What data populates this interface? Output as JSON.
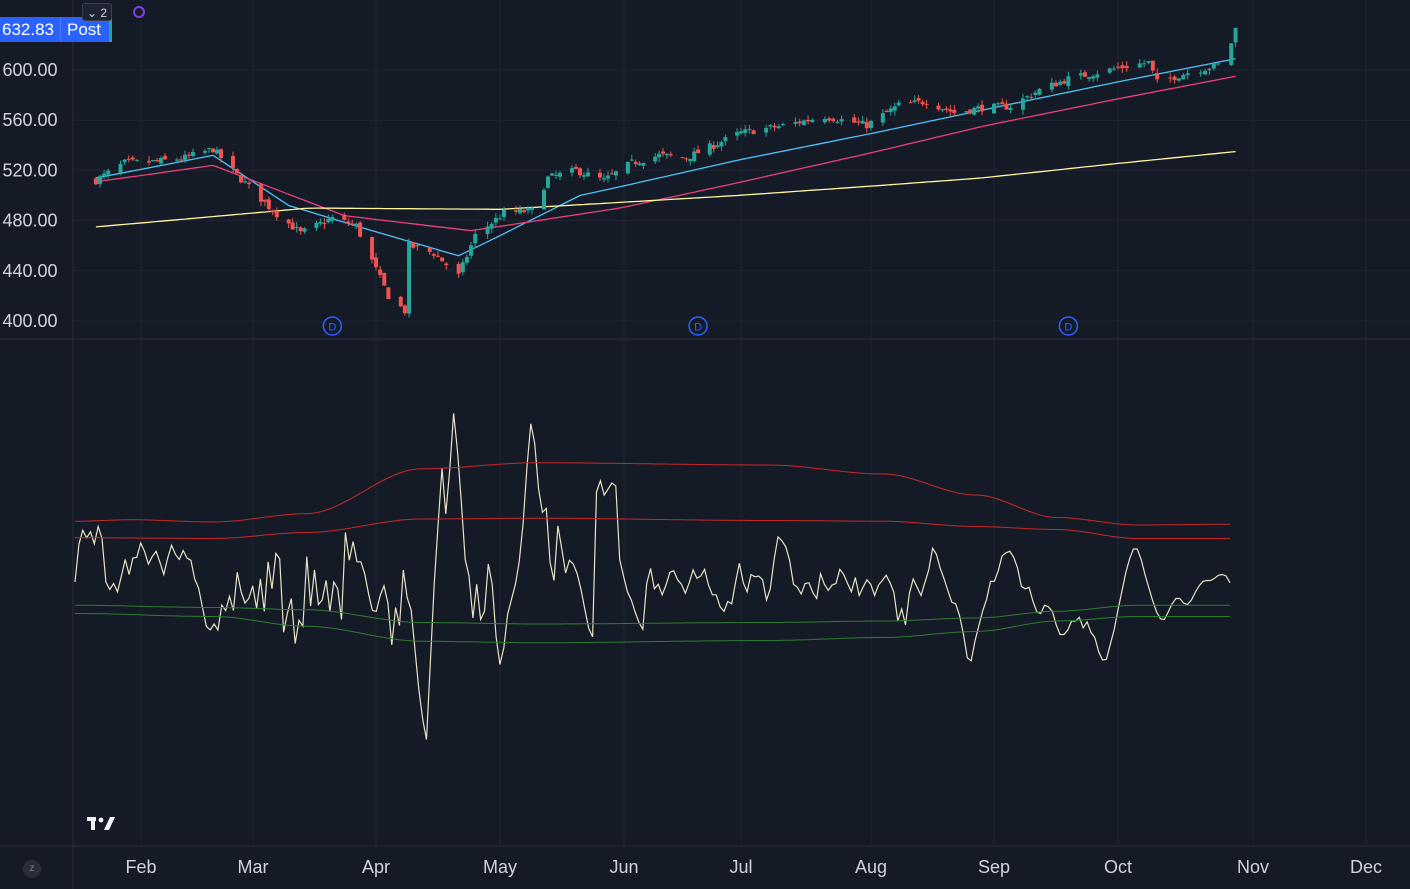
{
  "ticker_bar": {
    "last_price": "632.83",
    "session_label": "Post",
    "collapse_count": "2"
  },
  "theme": {
    "background": "#151a27",
    "grid": "#1f2433",
    "axis_text": "#d1d4dc",
    "up": "#26a69a",
    "down": "#ef5350",
    "ma_fast": "#4fc3f7",
    "ma_mid": "#ec407a",
    "ma_slow": "#fff59d",
    "osc_line": "#e8e3c4",
    "upper_band": "#c62828",
    "lower_band": "#2e7d32",
    "dividend_marker": "#2962ff"
  },
  "chart_data": [
    {
      "type": "candlestick",
      "y_ticks": [
        "600.00",
        "560.00",
        "520.00",
        "480.00",
        "440.00",
        "400.00"
      ],
      "ylim": [
        396,
        640
      ],
      "x_ticks": [
        "Feb",
        "Mar",
        "Apr",
        "May",
        "Jun",
        "Jul",
        "Aug",
        "Sep",
        "Oct",
        "Nov",
        "Dec"
      ],
      "dividend_marker_label": "D",
      "dividend_dates": [
        "2025-03-21",
        "2025-06-20",
        "2025-09-19"
      ],
      "close_anchors": [
        [
          "2025-01-21",
          512
        ],
        [
          "2025-01-28",
          526
        ],
        [
          "2025-02-05",
          527
        ],
        [
          "2025-02-12",
          530
        ],
        [
          "2025-02-19",
          537
        ],
        [
          "2025-02-26",
          513
        ],
        [
          "2025-03-06",
          488
        ],
        [
          "2025-03-13",
          470
        ],
        [
          "2025-03-21",
          482
        ],
        [
          "2025-03-27",
          476
        ],
        [
          "2025-04-04",
          420
        ],
        [
          "2025-04-08",
          408
        ],
        [
          "2025-04-09",
          460
        ],
        [
          "2025-04-15",
          454
        ],
        [
          "2025-04-21",
          436
        ],
        [
          "2025-04-25",
          468
        ],
        [
          "2025-05-02",
          486
        ],
        [
          "2025-05-09",
          488
        ],
        [
          "2025-05-13",
          514
        ],
        [
          "2025-05-20",
          520
        ],
        [
          "2025-05-27",
          512
        ],
        [
          "2025-06-03",
          526
        ],
        [
          "2025-06-10",
          532
        ],
        [
          "2025-06-17",
          530
        ],
        [
          "2025-06-24",
          540
        ],
        [
          "2025-07-01",
          550
        ],
        [
          "2025-07-10",
          555
        ],
        [
          "2025-07-21",
          563
        ],
        [
          "2025-07-31",
          556
        ],
        [
          "2025-08-08",
          572
        ],
        [
          "2025-08-15",
          575
        ],
        [
          "2025-08-22",
          566
        ],
        [
          "2025-08-29",
          570
        ],
        [
          "2025-09-05",
          571
        ],
        [
          "2025-09-12",
          584
        ],
        [
          "2025-09-19",
          593
        ],
        [
          "2025-09-26",
          598
        ],
        [
          "2025-10-03",
          603
        ],
        [
          "2025-10-08",
          606
        ],
        [
          "2025-10-10",
          590
        ],
        [
          "2025-10-17",
          598
        ],
        [
          "2025-10-24",
          604
        ],
        [
          "2025-10-27",
          622
        ],
        [
          "2025-10-28",
          632.83
        ]
      ],
      "moving_averages": [
        {
          "id": "fast",
          "anchors": [
            [
              "2025-01-21",
              514
            ],
            [
              "2025-02-19",
              532
            ],
            [
              "2025-03-10",
              492
            ],
            [
              "2025-04-21",
              452
            ],
            [
              "2025-05-21",
              500
            ],
            [
              "2025-06-30",
              528
            ],
            [
              "2025-08-29",
              568
            ],
            [
              "2025-10-28",
              609
            ]
          ]
        },
        {
          "id": "mid",
          "anchors": [
            [
              "2025-01-21",
              511
            ],
            [
              "2025-02-19",
              524
            ],
            [
              "2025-03-24",
              484
            ],
            [
              "2025-04-24",
              472
            ],
            [
              "2025-05-31",
              490
            ],
            [
              "2025-06-30",
              510
            ],
            [
              "2025-08-29",
              555
            ],
            [
              "2025-10-28",
              595
            ]
          ]
        },
        {
          "id": "slow",
          "anchors": [
            [
              "2025-01-21",
              475
            ],
            [
              "2025-03-15",
              490
            ],
            [
              "2025-05-01",
              489
            ],
            [
              "2025-06-30",
              500
            ],
            [
              "2025-08-29",
              514
            ],
            [
              "2025-10-28",
              535
            ]
          ]
        }
      ]
    },
    {
      "type": "line",
      "series": [
        {
          "id": "oscillator",
          "values": [
            0.04,
            0.54,
            0.73,
            0.63,
            0.71,
            0.55,
            0.78,
            0.62,
            0.04,
            -0.06,
            0.02,
            -0.09,
            0.12,
            0.34,
            0.14,
            0.36,
            0.37,
            0.56,
            0.45,
            0.28,
            0.38,
            0.45,
            0.3,
            0.14,
            0.36,
            0.53,
            0.41,
            0.34,
            0.46,
            0.36,
            0.33,
            0.08,
            -0.04,
            -0.3,
            -0.55,
            -0.6,
            -0.52,
            -0.6,
            -0.27,
            -0.34,
            -0.15,
            -0.34,
            0.17,
            -0.09,
            -0.24,
            -0.18,
            -0.01,
            -0.31,
            0.08,
            -0.35,
            0.31,
            -0.05,
            0.42,
            0.35,
            -0.63,
            -0.37,
            -0.18,
            -0.78,
            -0.47,
            -0.55,
            0.38,
            -0.28,
            0.2,
            -0.26,
            -0.2,
            0.06,
            -0.35,
            0.04,
            -0.05,
            -0.46,
            0.7,
            0.33,
            0.58,
            0.31,
            0.31,
            0.15,
            -0.12,
            -0.34,
            -0.35,
            -0.14,
            -0.01,
            -0.24,
            -0.8,
            -0.3,
            -0.54,
            0.2,
            -0.17,
            -0.33,
            -0.85,
            -1.39,
            -1.79,
            -2.06,
            -1.02,
            0.01,
            0.81,
            1.56,
            0.95,
            1.53,
            2.29,
            1.8,
            1.11,
            0.34,
            0.12,
            -0.44,
            0.01,
            -0.46,
            -0.35,
            0.28,
            0.01,
            -0.69,
            -1.06,
            -0.84,
            -0.39,
            -0.19,
            0.01,
            0.31,
            0.82,
            1.58,
            2.15,
            1.89,
            1.29,
            0.97,
            1.02,
            0.3,
            0.06,
            0.79,
            0.49,
            0.16,
            0.33,
            0.28,
            0.15,
            -0.06,
            -0.33,
            -0.58,
            -0.69,
            1.24,
            1.39,
            1.2,
            1.28,
            1.36,
            1.32,
            0.34,
            0.12,
            -0.09,
            -0.2,
            -0.36,
            -0.5,
            -0.59,
            0.02,
            0.22,
            -0.05,
            0.01,
            -0.13,
            0.0,
            0.17,
            0.19,
            0.07,
            0.01,
            -0.11,
            0.03,
            0.2,
            0.09,
            0.12,
            0.21,
            -0.0,
            -0.13,
            -0.13,
            -0.29,
            -0.35,
            -0.22,
            -0.25,
            0.04,
            0.29,
            0.03,
            -0.09,
            0.14,
            0.11,
            0.12,
            0.07,
            -0.2,
            -0.05,
            0.35,
            0.64,
            0.59,
            0.51,
            0.33,
            0.01,
            -0.03,
            -0.12,
            0.02,
            0.03,
            -0.1,
            -0.18,
            0.15,
            0.01,
            -0.07,
            -0.0,
            0.02,
            0.21,
            0.14,
            0.02,
            -0.09,
            0.1,
            -0.14,
            -0.03,
            0.07,
            0.01,
            -0.14,
            0.0,
            0.06,
            0.13,
            0.03,
            -0.1,
            -0.48,
            -0.32,
            -0.53,
            -0.11,
            0.08,
            -0.03,
            -0.14,
            0.03,
            0.2,
            0.49,
            0.41,
            0.22,
            0.08,
            -0.08,
            -0.23,
            -0.25,
            -0.41,
            -0.66,
            -0.97,
            -1.01,
            -0.74,
            -0.54,
            -0.34,
            -0.19,
            0.05,
            0.05,
            0.19,
            0.39,
            0.43,
            0.45,
            0.37,
            0.23,
            -0.02,
            -0.05,
            -0.03,
            -0.22,
            -0.36,
            -0.38,
            -0.27,
            -0.29,
            -0.35,
            -0.53,
            -0.66,
            -0.66,
            -0.6,
            -0.48,
            -0.48,
            -0.43,
            -0.57,
            -0.49,
            -0.63,
            -0.7,
            -0.89,
            -1.0,
            -0.99,
            -0.79,
            -0.6,
            -0.33,
            -0.09,
            0.16,
            0.35,
            0.48,
            0.48,
            0.34,
            0.14,
            -0.04,
            -0.21,
            -0.36,
            -0.45,
            -0.46,
            -0.36,
            -0.25,
            -0.18,
            -0.18,
            -0.24,
            -0.26,
            -0.2,
            -0.1,
            -0.01,
            0.05,
            0.06,
            0.06,
            0.09,
            0.13,
            0.14,
            0.12,
            0.03
          ]
        },
        {
          "id": "upper_outer",
          "anchors": [
            [
              0,
              0.85
            ],
            [
              0.05,
              0.87
            ],
            [
              0.12,
              0.84
            ],
            [
              0.2,
              0.95
            ],
            [
              0.3,
              1.55
            ],
            [
              0.4,
              1.63
            ],
            [
              0.6,
              1.6
            ],
            [
              0.7,
              1.48
            ],
            [
              0.78,
              1.2
            ],
            [
              0.85,
              0.9
            ],
            [
              0.92,
              0.8
            ],
            [
              1.0,
              0.81
            ]
          ]
        },
        {
          "id": "upper_inner",
          "anchors": [
            [
              0,
              0.63
            ],
            [
              0.12,
              0.62
            ],
            [
              0.2,
              0.7
            ],
            [
              0.3,
              0.88
            ],
            [
              0.4,
              0.89
            ],
            [
              0.6,
              0.86
            ],
            [
              0.7,
              0.85
            ],
            [
              0.78,
              0.78
            ],
            [
              0.85,
              0.74
            ],
            [
              0.92,
              0.62
            ],
            [
              1.0,
              0.62
            ]
          ]
        },
        {
          "id": "lower_inner",
          "anchors": [
            [
              0,
              -0.27
            ],
            [
              0.12,
              -0.3
            ],
            [
              0.2,
              -0.33
            ],
            [
              0.3,
              -0.5
            ],
            [
              0.4,
              -0.52
            ],
            [
              0.6,
              -0.5
            ],
            [
              0.7,
              -0.48
            ],
            [
              0.78,
              -0.44
            ],
            [
              0.85,
              -0.35
            ],
            [
              0.92,
              -0.27
            ],
            [
              1.0,
              -0.27
            ]
          ]
        },
        {
          "id": "lower_outer",
          "anchors": [
            [
              0,
              -0.38
            ],
            [
              0.12,
              -0.42
            ],
            [
              0.2,
              -0.55
            ],
            [
              0.3,
              -0.75
            ],
            [
              0.4,
              -0.77
            ],
            [
              0.6,
              -0.74
            ],
            [
              0.7,
              -0.7
            ],
            [
              0.78,
              -0.62
            ],
            [
              0.85,
              -0.48
            ],
            [
              0.92,
              -0.42
            ],
            [
              1.0,
              -0.42
            ]
          ]
        }
      ]
    }
  ],
  "footer": {
    "zoom_label": "z"
  }
}
